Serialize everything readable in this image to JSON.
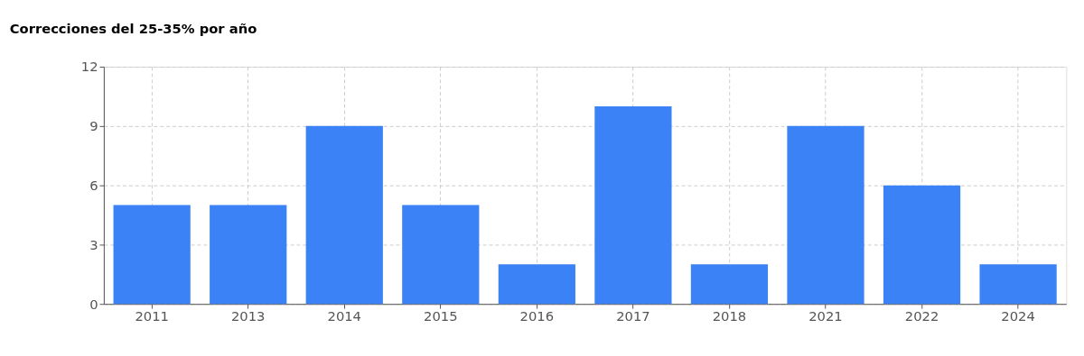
{
  "chart_data": {
    "type": "bar",
    "title": "Correcciones del 25-35% por año",
    "categories": [
      "2011",
      "2013",
      "2014",
      "2015",
      "2016",
      "2017",
      "2018",
      "2021",
      "2022",
      "2024"
    ],
    "values": [
      5,
      5,
      9,
      5,
      2,
      10,
      2,
      9,
      6,
      2
    ],
    "color": "#3b82f6",
    "ylim": [
      0,
      12
    ],
    "yticks": [
      0,
      3,
      6,
      9,
      12
    ],
    "grid": true
  }
}
